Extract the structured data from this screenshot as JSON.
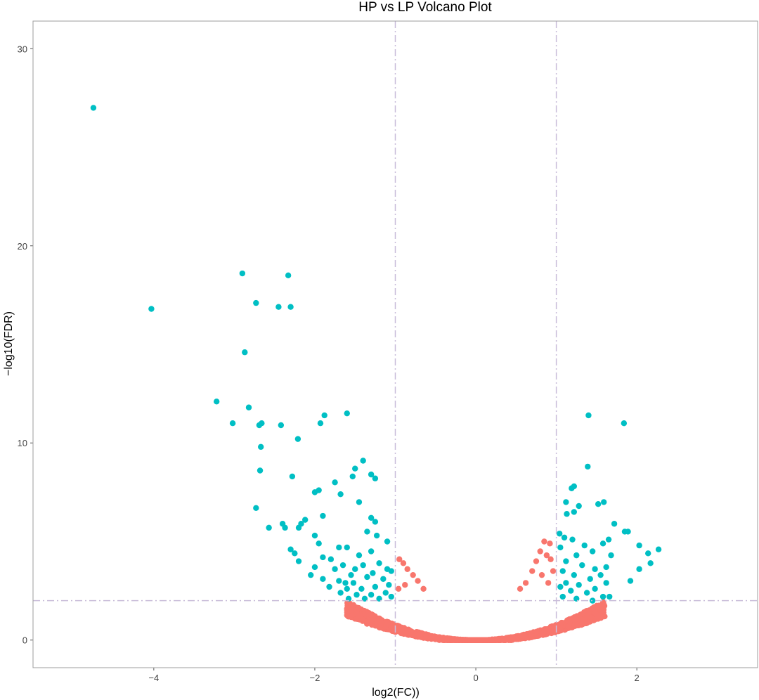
{
  "chart_data": {
    "type": "scatter",
    "title": "HP vs LP Volcano Plot",
    "xlabel": "log2(FC))",
    "ylabel": "−log10(FDR)",
    "xlim": [
      -5.5,
      3.5
    ],
    "ylim": [
      -1.4,
      31.4
    ],
    "x_ticks": [
      -4,
      -2,
      0,
      2
    ],
    "x_tick_labels": [
      "−4",
      "−2",
      "0",
      "2"
    ],
    "y_ticks": [
      0,
      10,
      20,
      30
    ],
    "y_tick_labels": [
      "0",
      "10",
      "20",
      "30"
    ],
    "thresholds": {
      "log2fc": [
        -1,
        1
      ],
      "neg_log10_fdr": 2
    },
    "grid": false,
    "legend": "none",
    "colors": {
      "significant": "#00BFC4",
      "not_significant": "#F8766D",
      "threshold_line": "#C8BCD9",
      "panel_border": "#9E9E9E"
    },
    "series": [
      {
        "color": "#00BFC4",
        "points": [
          [
            -4.75,
            27.0
          ],
          [
            -4.03,
            16.8
          ],
          [
            -2.9,
            18.6
          ],
          [
            -2.33,
            18.5
          ],
          [
            -2.73,
            17.1
          ],
          [
            -2.45,
            16.9
          ],
          [
            -2.3,
            16.9
          ],
          [
            -2.87,
            14.6
          ],
          [
            -3.22,
            12.1
          ],
          [
            -2.82,
            11.8
          ],
          [
            -3.02,
            11.0
          ],
          [
            -2.66,
            11.0
          ],
          [
            -2.69,
            10.9
          ],
          [
            -2.42,
            10.9
          ],
          [
            -2.21,
            10.2
          ],
          [
            -2.67,
            9.8
          ],
          [
            -2.68,
            8.6
          ],
          [
            -2.28,
            8.3
          ],
          [
            -1.88,
            11.4
          ],
          [
            -1.93,
            11.0
          ],
          [
            -1.6,
            11.5
          ],
          [
            -1.4,
            9.1
          ],
          [
            -1.5,
            8.7
          ],
          [
            -1.53,
            8.3
          ],
          [
            -1.3,
            8.4
          ],
          [
            -1.25,
            8.2
          ],
          [
            -1.75,
            8.0
          ],
          [
            -1.95,
            7.6
          ],
          [
            -2.0,
            7.5
          ],
          [
            -1.68,
            7.4
          ],
          [
            -2.73,
            6.7
          ],
          [
            -1.45,
            7.0
          ],
          [
            -1.9,
            6.3
          ],
          [
            -2.12,
            6.1
          ],
          [
            -2.4,
            5.9
          ],
          [
            -2.57,
            5.7
          ],
          [
            -2.37,
            5.7
          ],
          [
            -2.17,
            5.9
          ],
          [
            -2.2,
            5.7
          ],
          [
            -1.3,
            6.2
          ],
          [
            -1.25,
            6.0
          ],
          [
            -1.35,
            5.5
          ],
          [
            -2.0,
            5.3
          ],
          [
            -1.95,
            4.9
          ],
          [
            -1.23,
            5.3
          ],
          [
            -1.1,
            5.0
          ],
          [
            -1.7,
            4.7
          ],
          [
            -1.6,
            4.7
          ],
          [
            -2.3,
            4.6
          ],
          [
            -2.25,
            4.4
          ],
          [
            -1.9,
            4.2
          ],
          [
            -1.8,
            4.1
          ],
          [
            -1.65,
            3.8
          ],
          [
            -1.45,
            4.3
          ],
          [
            -1.3,
            4.5
          ],
          [
            -2.2,
            4.0
          ],
          [
            -2.0,
            3.7
          ],
          [
            -1.75,
            3.6
          ],
          [
            -1.55,
            3.3
          ],
          [
            -1.4,
            3.8
          ],
          [
            -1.2,
            3.9
          ],
          [
            -1.1,
            3.6
          ],
          [
            -2.05,
            3.3
          ],
          [
            -1.9,
            3.1
          ],
          [
            -1.7,
            3.0
          ],
          [
            -1.52,
            2.9
          ],
          [
            -1.35,
            3.2
          ],
          [
            -1.15,
            3.1
          ],
          [
            -1.05,
            3.5
          ],
          [
            -1.82,
            2.7
          ],
          [
            -1.6,
            2.6
          ],
          [
            -1.42,
            2.6
          ],
          [
            -1.25,
            2.7
          ],
          [
            -1.08,
            2.8
          ],
          [
            -1.68,
            2.4
          ],
          [
            -1.48,
            2.3
          ],
          [
            -1.3,
            2.3
          ],
          [
            -1.12,
            2.4
          ],
          [
            -1.58,
            2.1
          ],
          [
            -1.38,
            2.1
          ],
          [
            -1.2,
            2.1
          ],
          [
            -1.05,
            2.2
          ],
          [
            -1.5,
            3.6
          ],
          [
            -1.28,
            3.4
          ],
          [
            -1.62,
            2.9
          ],
          [
            1.4,
            11.4
          ],
          [
            1.84,
            11.0
          ],
          [
            1.39,
            8.8
          ],
          [
            1.22,
            7.8
          ],
          [
            1.19,
            7.7
          ],
          [
            1.12,
            7.0
          ],
          [
            1.28,
            6.8
          ],
          [
            1.59,
            7.0
          ],
          [
            1.52,
            6.9
          ],
          [
            1.22,
            6.5
          ],
          [
            1.13,
            6.4
          ],
          [
            1.72,
            5.9
          ],
          [
            1.85,
            5.5
          ],
          [
            1.89,
            5.5
          ],
          [
            1.04,
            5.4
          ],
          [
            1.1,
            5.2
          ],
          [
            1.2,
            5.1
          ],
          [
            1.35,
            4.8
          ],
          [
            1.65,
            5.1
          ],
          [
            1.58,
            4.9
          ],
          [
            2.03,
            4.8
          ],
          [
            2.27,
            4.6
          ],
          [
            2.14,
            4.4
          ],
          [
            1.05,
            4.7
          ],
          [
            1.25,
            4.3
          ],
          [
            1.45,
            4.5
          ],
          [
            1.68,
            4.3
          ],
          [
            1.12,
            4.0
          ],
          [
            1.32,
            3.8
          ],
          [
            1.48,
            3.6
          ],
          [
            1.62,
            3.7
          ],
          [
            2.17,
            3.9
          ],
          [
            2.03,
            3.6
          ],
          [
            1.08,
            3.5
          ],
          [
            1.22,
            3.3
          ],
          [
            1.42,
            3.1
          ],
          [
            1.55,
            3.3
          ],
          [
            1.92,
            3.0
          ],
          [
            1.12,
            2.9
          ],
          [
            1.28,
            2.8
          ],
          [
            1.48,
            2.6
          ],
          [
            1.62,
            2.9
          ],
          [
            1.05,
            2.7
          ],
          [
            1.18,
            2.5
          ],
          [
            1.38,
            2.4
          ],
          [
            1.58,
            2.2
          ],
          [
            1.66,
            2.2
          ],
          [
            1.08,
            2.2
          ],
          [
            1.25,
            2.1
          ],
          [
            1.45,
            2.0
          ]
        ]
      },
      {
        "color": "#F8766D",
        "points": [
          [
            -0.95,
            4.1
          ],
          [
            -0.9,
            3.9
          ],
          [
            -0.85,
            3.6
          ],
          [
            -0.78,
            3.3
          ],
          [
            -0.72,
            3.0
          ],
          [
            -0.88,
            2.8
          ],
          [
            -0.65,
            2.6
          ],
          [
            -0.96,
            2.6
          ],
          [
            0.85,
            5.0
          ],
          [
            0.92,
            4.9
          ],
          [
            0.8,
            4.5
          ],
          [
            0.88,
            4.3
          ],
          [
            0.75,
            4.0
          ],
          [
            0.93,
            4.1
          ],
          [
            0.7,
            3.5
          ],
          [
            0.82,
            3.3
          ],
          [
            0.96,
            3.5
          ],
          [
            0.62,
            2.9
          ],
          [
            0.55,
            2.6
          ],
          [
            0.9,
            2.9
          ]
        ],
        "cloud": {
          "x_range": [
            -1.6,
            1.6
          ],
          "y_min": 0.0,
          "y_max_at_edges": 2.0,
          "shape": "parabola"
        }
      }
    ]
  }
}
